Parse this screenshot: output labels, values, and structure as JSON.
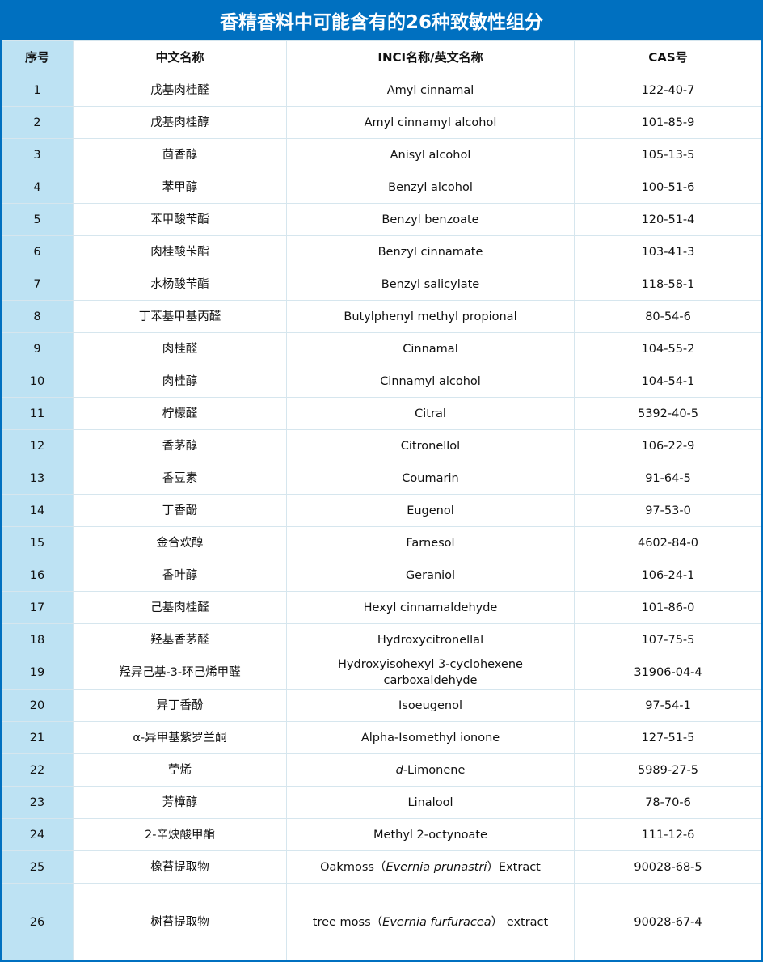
{
  "title": "香精香料中可能含有的26种致敏性组分",
  "accent_color": "#0070c0",
  "index_column_color": "#bde2f3",
  "headers": [
    "序号",
    "中文名称",
    "INCI名称/英文名称",
    "CAS号"
  ],
  "rows": [
    {
      "no": "1",
      "cn": "戊基肉桂醛",
      "en": [
        {
          "t": "Amyl cinnamal"
        }
      ],
      "cas": "122-40-7"
    },
    {
      "no": "2",
      "cn": "戊基肉桂醇",
      "en": [
        {
          "t": "Amyl cinnamyl alcohol"
        }
      ],
      "cas": "101-85-9"
    },
    {
      "no": "3",
      "cn": "茴香醇",
      "en": [
        {
          "t": "Anisyl alcohol"
        }
      ],
      "cas": "105-13-5"
    },
    {
      "no": "4",
      "cn": "苯甲醇",
      "en": [
        {
          "t": "Benzyl alcohol"
        }
      ],
      "cas": "100-51-6"
    },
    {
      "no": "5",
      "cn": "苯甲酸苄酯",
      "en": [
        {
          "t": "Benzyl benzoate"
        }
      ],
      "cas": "120-51-4"
    },
    {
      "no": "6",
      "cn": "肉桂酸苄酯",
      "en": [
        {
          "t": "Benzyl cinnamate"
        }
      ],
      "cas": "103-41-3"
    },
    {
      "no": "7",
      "cn": "水杨酸苄酯",
      "en": [
        {
          "t": "Benzyl salicylate"
        }
      ],
      "cas": "118-58-1"
    },
    {
      "no": "8",
      "cn": "丁苯基甲基丙醛",
      "en": [
        {
          "t": "Butylphenyl methyl propional"
        }
      ],
      "cas": "80-54-6"
    },
    {
      "no": "9",
      "cn": "肉桂醛",
      "en": [
        {
          "t": "Cinnamal"
        }
      ],
      "cas": "104-55-2"
    },
    {
      "no": "10",
      "cn": "肉桂醇",
      "en": [
        {
          "t": "Cinnamyl alcohol"
        }
      ],
      "cas": "104-54-1"
    },
    {
      "no": "11",
      "cn": "柠檬醛",
      "en": [
        {
          "t": "Citral"
        }
      ],
      "cas": "5392-40-5"
    },
    {
      "no": "12",
      "cn": "香茅醇",
      "en": [
        {
          "t": "Citronellol"
        }
      ],
      "cas": "106-22-9"
    },
    {
      "no": "13",
      "cn": "香豆素",
      "en": [
        {
          "t": "Coumarin"
        }
      ],
      "cas": "91-64-5"
    },
    {
      "no": "14",
      "cn": "丁香酚",
      "en": [
        {
          "t": "Eugenol"
        }
      ],
      "cas": "97-53-0"
    },
    {
      "no": "15",
      "cn": "金合欢醇",
      "en": [
        {
          "t": "Farnesol"
        }
      ],
      "cas": "4602-84-0"
    },
    {
      "no": "16",
      "cn": "香叶醇",
      "en": [
        {
          "t": "Geraniol"
        }
      ],
      "cas": "106-24-1"
    },
    {
      "no": "17",
      "cn": "己基肉桂醛",
      "en": [
        {
          "t": "Hexyl cinnamaldehyde"
        }
      ],
      "cas": "101-86-0"
    },
    {
      "no": "18",
      "cn": "羟基香茅醛",
      "en": [
        {
          "t": "Hydroxycitronellal"
        }
      ],
      "cas": "107-75-5"
    },
    {
      "no": "19",
      "cn": "羟异己基-3-环己烯甲醛",
      "en": [
        {
          "t": "Hydroxyisohexyl 3-cyclohexene carboxaldehyde"
        }
      ],
      "cas": "31906-04-4"
    },
    {
      "no": "20",
      "cn": "异丁香酚",
      "en": [
        {
          "t": "Isoeugenol"
        }
      ],
      "cas": "97-54-1"
    },
    {
      "no": "21",
      "cn": "α-异甲基紫罗兰酮",
      "en": [
        {
          "t": "Alpha-Isomethyl ionone"
        }
      ],
      "cas": "127-51-5"
    },
    {
      "no": "22",
      "cn": "苧烯",
      "en": [
        {
          "t": "d",
          "i": true
        },
        {
          "t": "-Limonene"
        }
      ],
      "cas": "5989-27-5"
    },
    {
      "no": "23",
      "cn": "芳樟醇",
      "en": [
        {
          "t": "Linalool"
        }
      ],
      "cas": "78-70-6"
    },
    {
      "no": "24",
      "cn": "2-辛炔酸甲酯",
      "en": [
        {
          "t": "Methyl 2-octynoate"
        }
      ],
      "cas": "111-12-6"
    },
    {
      "no": "25",
      "cn": "橡苔提取物",
      "en": [
        {
          "t": "Oakmoss（"
        },
        {
          "t": "Evernia prunastri",
          "i": true
        },
        {
          "t": "）Extract"
        }
      ],
      "cas": "90028-68-5"
    },
    {
      "no": "26",
      "cn": "树苔提取物",
      "en": [
        {
          "t": "tree moss（"
        },
        {
          "t": "Evernia furfuracea",
          "i": true
        },
        {
          "t": "） extract"
        }
      ],
      "cas": "90028-67-4"
    }
  ]
}
